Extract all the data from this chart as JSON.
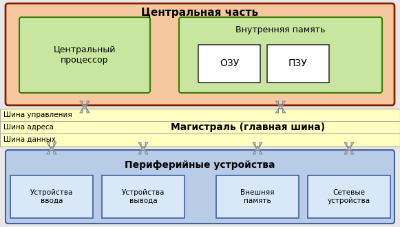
{
  "title_central": "Центральная часть",
  "title_bus": "Магистраль (главная шина)",
  "title_peripheral": "Периферийные устройства",
  "label_cpu": "Центральный\nпроцессор",
  "label_mem": "Внутренняя память",
  "label_ozu": "ОЗУ",
  "label_pzu": "ПЗУ",
  "label_bus1": "Шина управления",
  "label_bus2": "Шина адреса",
  "label_bus3": "Шина данных",
  "label_dev1": "Устройства\nввода",
  "label_dev2": "Устройства\nвывода",
  "label_dev3": "Внешняя\nпамять",
  "label_dev4": "Сетевые\nустройства",
  "color_central_bg": "#f5c8a0",
  "color_central_border": "#8b2000",
  "color_cpu_bg": "#c8e6a0",
  "color_cpu_border": "#3a7a00",
  "color_mem_bg": "#c8e6a0",
  "color_mem_border": "#3a7a00",
  "color_ozu_bg": "#ffffff",
  "color_ozu_border": "#333333",
  "color_bus_bg": "#ffffc0",
  "color_bus_border": "#aaaaaa",
  "color_peripheral_bg": "#b8cce8",
  "color_peripheral_border": "#4060a0",
  "color_dev_bg": "#d8e8f8",
  "color_dev_border": "#4060a0",
  "color_arrow_fill": "#cccccc",
  "color_arrow_edge": "#888888",
  "bg_color": "#e8e8e8",
  "figsize": [
    5.81,
    3.3
  ],
  "dpi": 100
}
